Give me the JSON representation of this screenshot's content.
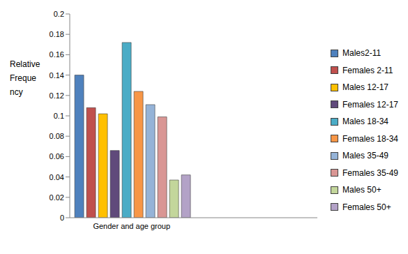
{
  "chart_data": {
    "type": "bar",
    "y_label": "Relative Frequency",
    "categories": [
      "Gender and age group",
      null
    ],
    "series": [
      {
        "name": "Males2-11",
        "color": "#4f81bd",
        "values": [
          0.14,
          null
        ]
      },
      {
        "name": "Females 2-11",
        "color": "#c0504d",
        "values": [
          0.108,
          null
        ]
      },
      {
        "name": "Males 12-17",
        "color": "#ffc000",
        "values": [
          0.102,
          null
        ]
      },
      {
        "name": "Females 12-17",
        "color": "#604a7b",
        "values": [
          0.066,
          null
        ]
      },
      {
        "name": "Males 18-34",
        "color": "#4bacc6",
        "values": [
          0.172,
          null
        ]
      },
      {
        "name": "Females 18-34",
        "color": "#f79646",
        "values": [
          0.124,
          null
        ]
      },
      {
        "name": "Males 35-49",
        "color": "#95b3d7",
        "values": [
          0.111,
          null
        ]
      },
      {
        "name": "Females 35-49",
        "color": "#d99694",
        "values": [
          0.099,
          null
        ]
      },
      {
        "name": "Males 50+",
        "color": "#c3d69b",
        "values": [
          0.037,
          null
        ]
      },
      {
        "name": "Females 50+",
        "color": "#b3a2c7",
        "values": [
          0.042,
          null
        ]
      }
    ],
    "ylim": [
      0,
      0.2
    ],
    "yticks": [
      0,
      0.02,
      0.04,
      0.06,
      0.08,
      0.1,
      0.12,
      0.14,
      0.16,
      0.18,
      0.2
    ],
    "grid": false,
    "legend": "right"
  }
}
